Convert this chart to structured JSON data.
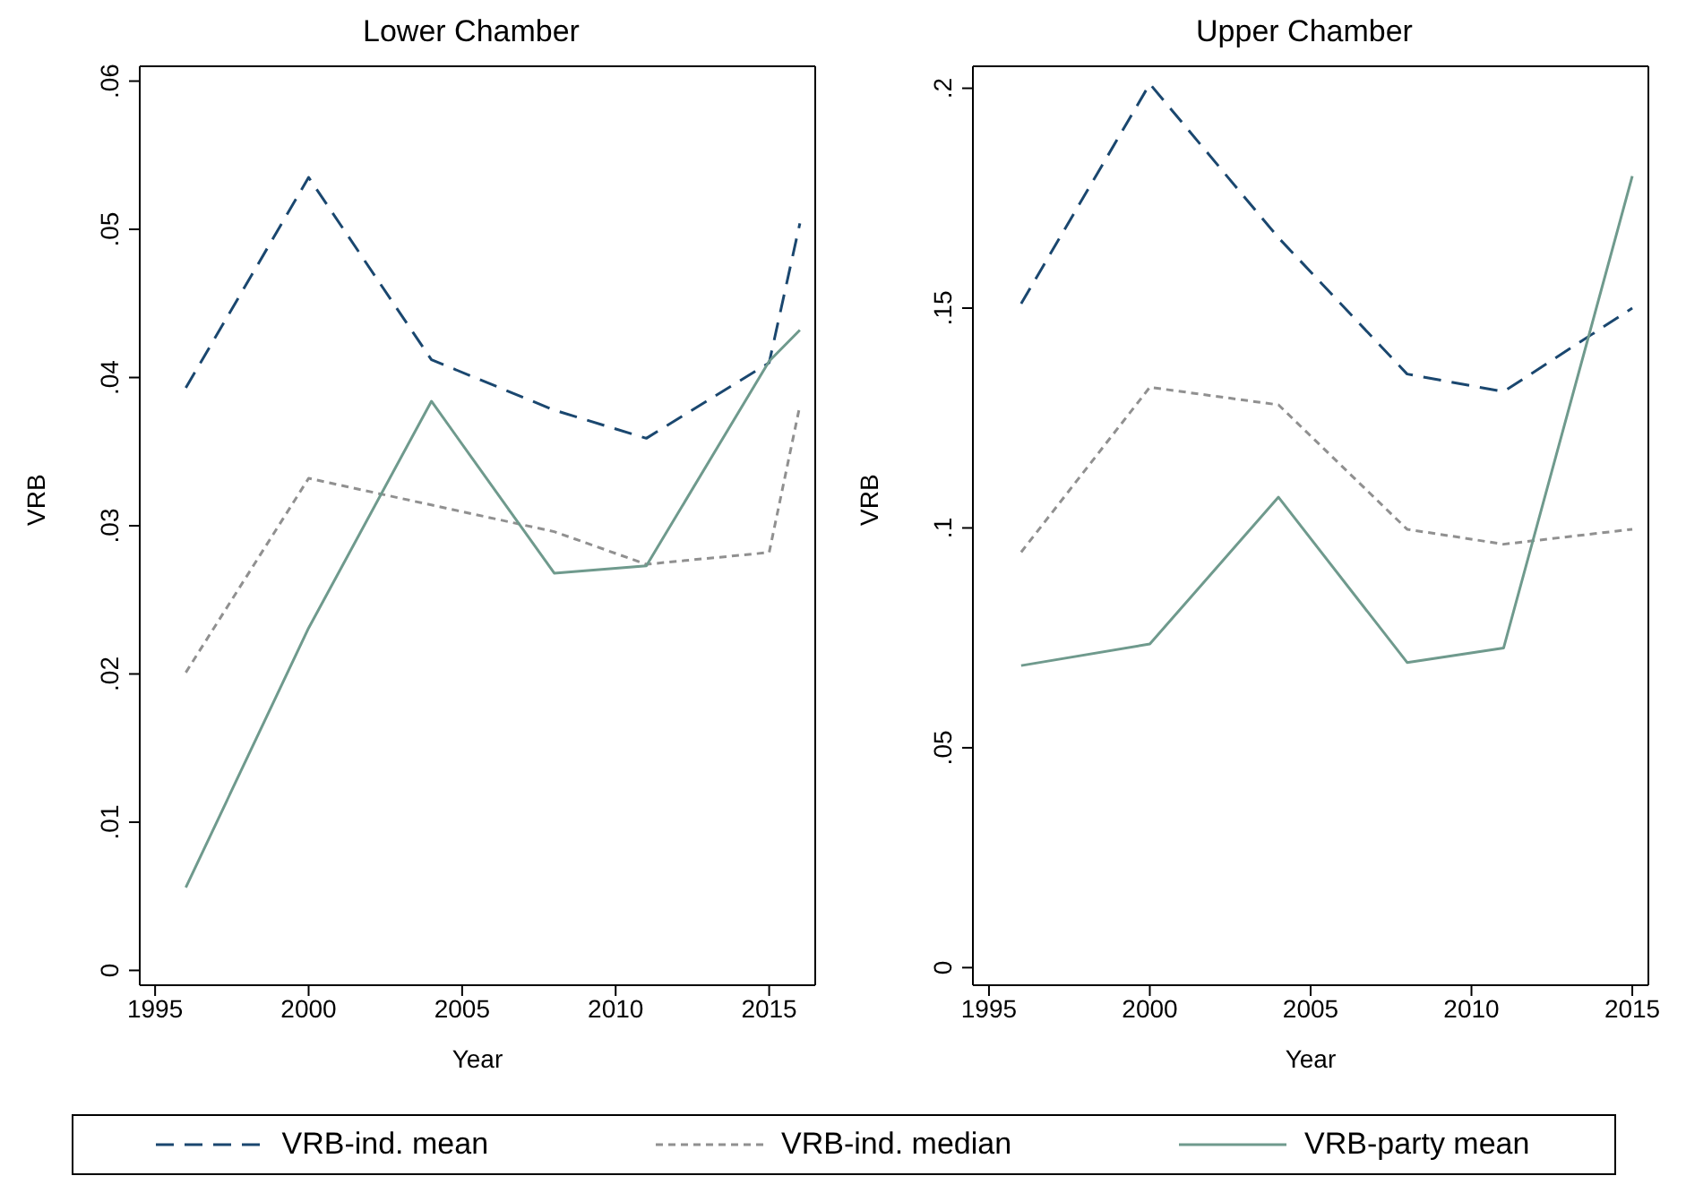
{
  "chart_data": [
    {
      "type": "line",
      "title": "Lower Chamber",
      "xlabel": "Year",
      "ylabel": "VRB",
      "xlim": [
        1994.5,
        2016.5
      ],
      "xticks": [
        1995,
        2000,
        2005,
        2010,
        2015
      ],
      "ylim": [
        -0.001,
        0.061
      ],
      "yticks": [
        0,
        {
          "value": 0.01,
          "label": ".01"
        },
        {
          "value": 0.02,
          "label": ".02"
        },
        {
          "value": 0.03,
          "label": ".03"
        },
        {
          "value": 0.04,
          "label": ".04"
        },
        {
          "value": 0.05,
          "label": ".05"
        },
        {
          "value": 0.06,
          "label": ".06"
        }
      ],
      "legend": "bottom",
      "marker": "none",
      "x": [
        1996,
        2000,
        2004,
        2008,
        2011,
        2015,
        2016
      ],
      "series": [
        {
          "name": "VRB-ind. mean",
          "color": "#1a476f",
          "line_style": "dashed",
          "values": [
            0.0393,
            0.0535,
            0.0412,
            0.0378,
            0.0359,
            0.041,
            0.0504
          ]
        },
        {
          "name": "VRB-ind. median",
          "color": "#909090",
          "line_style": "dotted",
          "values": [
            0.0201,
            0.0332,
            0.0314,
            0.0296,
            0.0274,
            0.0282,
            0.0381
          ]
        },
        {
          "name": "VRB-party mean",
          "color": "#6f9a8d",
          "line_style": "solid",
          "values": [
            0.0056,
            0.0231,
            0.0384,
            0.0268,
            0.0273,
            0.0411,
            0.0432
          ]
        }
      ]
    },
    {
      "type": "line",
      "title": "Upper Chamber",
      "xlabel": "Year",
      "ylabel": "VRB",
      "xlim": [
        1994.5,
        2015.5
      ],
      "xticks": [
        1995,
        2000,
        2005,
        2010,
        2015
      ],
      "ylim": [
        -0.004,
        0.205
      ],
      "yticks": [
        0,
        {
          "value": 0.05,
          "label": ".05"
        },
        {
          "value": 0.1,
          "label": ".1"
        },
        {
          "value": 0.15,
          "label": ".15"
        },
        {
          "value": 0.2,
          "label": ".2"
        }
      ],
      "legend": "bottom",
      "marker": "none",
      "x": [
        1996,
        2000,
        2004,
        2008,
        2011,
        2015
      ],
      "series": [
        {
          "name": "VRB-ind. mean",
          "color": "#1a476f",
          "line_style": "dashed",
          "values": [
            0.151,
            0.201,
            0.166,
            0.135,
            0.131,
            0.15
          ]
        },
        {
          "name": "VRB-ind. median",
          "color": "#909090",
          "line_style": "dotted",
          "values": [
            0.0945,
            0.132,
            0.128,
            0.0997,
            0.0963,
            0.0997
          ]
        },
        {
          "name": "VRB-party mean",
          "color": "#6f9a8d",
          "line_style": "solid",
          "values": [
            0.0687,
            0.0736,
            0.107,
            0.0694,
            0.0727,
            0.18
          ]
        }
      ]
    }
  ]
}
